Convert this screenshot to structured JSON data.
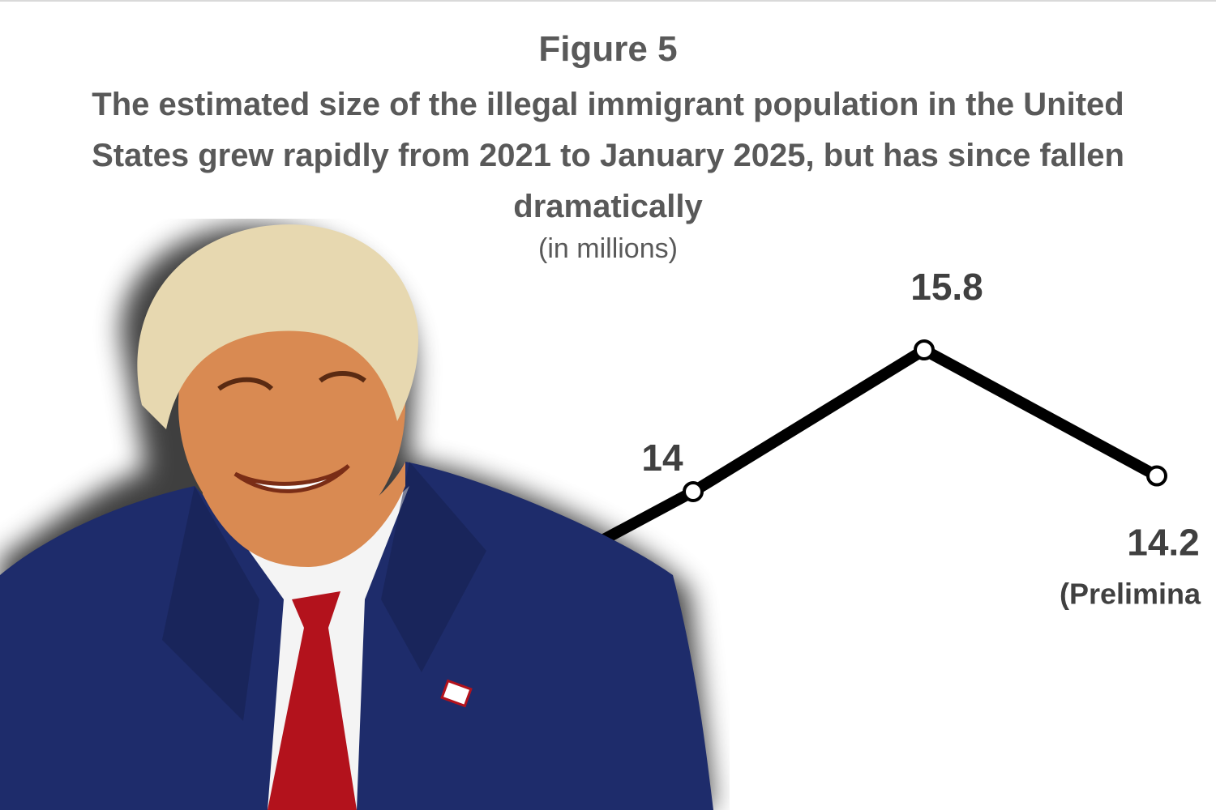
{
  "figure": {
    "label": "Figure 5",
    "title": "The estimated size of the illegal immigrant population in the United States grew rapidly from 2021 to January 2025, but has since fallen dramatically",
    "units": "(in millions)"
  },
  "chart_data": {
    "type": "line",
    "title": "Figure 5",
    "subtitle": "The estimated size of the illegal immigrant population in the United States grew rapidly from 2021 to January 2025, but has since fallen dramatically",
    "units": "(in millions)",
    "xlabel": "",
    "ylabel": "",
    "grid": false,
    "series": [
      {
        "values": [
          14,
          15.8,
          14.2
        ],
        "labels": [
          "14",
          "15.8",
          "14.2"
        ],
        "notes": [
          "",
          "",
          "(Prelimina"
        ]
      }
    ],
    "line_color": "#000000"
  },
  "photo": {
    "subject": "smiling-man-in-navy-suit-red-tie",
    "colors": {
      "suit": "#1e2c6b",
      "tie": "#b3121c",
      "shirt": "#f4f4f4",
      "hair": "#e7d8b0",
      "skin": "#d98a52"
    }
  }
}
